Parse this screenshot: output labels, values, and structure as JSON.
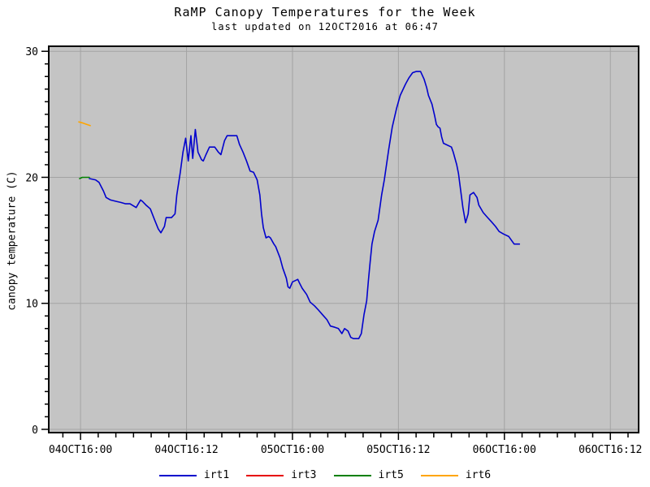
{
  "chart": {
    "title": "RaMP Canopy Temperatures for the Week",
    "subtitle": "last updated on 12OCT2016 at 06:47",
    "ylabel": "canopy temperature (C)"
  },
  "colors": {
    "background": "#ffffff",
    "plot_bg": "#c4c4c4",
    "grid": "#a3a3a3",
    "frame": "#000000",
    "text": "#000000",
    "irt1": "#0202cd",
    "irt3": "#e60000",
    "irt5": "#008000",
    "irt6": "#ffa500"
  },
  "chart_data": {
    "type": "line",
    "title": "RaMP Canopy Temperatures for the Week",
    "subtitle": "last updated on 12OCT2016 at 06:47",
    "xlabel": "",
    "ylabel": "canopy temperature (C)",
    "x_unit": "hours since 04OCT2016 00:00",
    "xlim": [
      -3.6,
      63.2
    ],
    "ylim": [
      -0.26,
      30.4
    ],
    "grid": true,
    "legend_position": "bottom",
    "x_major_ticks": [
      {
        "t": 0,
        "label": "04OCT16:00"
      },
      {
        "t": 12,
        "label": "04OCT16:12"
      },
      {
        "t": 24,
        "label": "05OCT16:00"
      },
      {
        "t": 36,
        "label": "05OCT16:12"
      },
      {
        "t": 48,
        "label": "06OCT16:00"
      },
      {
        "t": 60,
        "label": "06OCT16:12"
      }
    ],
    "x_minor_step": 2,
    "y_major_ticks": [
      {
        "v": 0,
        "label": "0"
      },
      {
        "v": 10,
        "label": "10"
      },
      {
        "v": 20,
        "label": "20"
      },
      {
        "v": 30,
        "label": "30"
      }
    ],
    "y_minor_step": 1,
    "series": [
      {
        "name": "irt1",
        "color": "#0202cd",
        "points": [
          [
            1.0,
            19.9
          ],
          [
            1.7,
            19.8
          ],
          [
            2.1,
            19.6
          ],
          [
            2.6,
            18.9
          ],
          [
            2.9,
            18.4
          ],
          [
            3.4,
            18.2
          ],
          [
            4.0,
            18.1
          ],
          [
            4.6,
            18.0
          ],
          [
            5.1,
            17.9
          ],
          [
            5.6,
            17.9
          ],
          [
            6.3,
            17.6
          ],
          [
            6.8,
            18.2
          ],
          [
            7.0,
            18.1
          ],
          [
            7.4,
            17.8
          ],
          [
            7.9,
            17.5
          ],
          [
            8.4,
            16.6
          ],
          [
            8.8,
            15.9
          ],
          [
            9.1,
            15.6
          ],
          [
            9.5,
            16.1
          ],
          [
            9.7,
            16.8
          ],
          [
            10.3,
            16.8
          ],
          [
            10.7,
            17.1
          ],
          [
            10.9,
            18.6
          ],
          [
            11.3,
            20.4
          ],
          [
            11.6,
            22.0
          ],
          [
            11.9,
            23.1
          ],
          [
            12.2,
            21.3
          ],
          [
            12.5,
            23.3
          ],
          [
            12.7,
            21.5
          ],
          [
            13.0,
            23.8
          ],
          [
            13.3,
            22.0
          ],
          [
            13.7,
            21.4
          ],
          [
            13.9,
            21.3
          ],
          [
            14.2,
            21.8
          ],
          [
            14.6,
            22.4
          ],
          [
            15.2,
            22.4
          ],
          [
            15.6,
            22.0
          ],
          [
            15.9,
            21.8
          ],
          [
            16.3,
            22.9
          ],
          [
            16.6,
            23.3
          ],
          [
            17.7,
            23.3
          ],
          [
            18.0,
            22.6
          ],
          [
            18.4,
            22.0
          ],
          [
            18.8,
            21.3
          ],
          [
            19.2,
            20.5
          ],
          [
            19.6,
            20.4
          ],
          [
            20.0,
            19.8
          ],
          [
            20.3,
            18.6
          ],
          [
            20.5,
            17.1
          ],
          [
            20.7,
            16.0
          ],
          [
            21.0,
            15.2
          ],
          [
            21.3,
            15.3
          ],
          [
            21.5,
            15.2
          ],
          [
            21.9,
            14.7
          ],
          [
            22.1,
            14.5
          ],
          [
            22.6,
            13.6
          ],
          [
            22.9,
            12.8
          ],
          [
            23.3,
            12.0
          ],
          [
            23.5,
            11.3
          ],
          [
            23.7,
            11.2
          ],
          [
            24.0,
            11.7
          ],
          [
            24.3,
            11.8
          ],
          [
            24.6,
            11.9
          ],
          [
            24.8,
            11.6
          ],
          [
            25.1,
            11.2
          ],
          [
            25.6,
            10.7
          ],
          [
            26.0,
            10.1
          ],
          [
            26.5,
            9.8
          ],
          [
            26.9,
            9.5
          ],
          [
            27.4,
            9.1
          ],
          [
            27.9,
            8.7
          ],
          [
            28.3,
            8.2
          ],
          [
            28.8,
            8.1
          ],
          [
            29.2,
            8.0
          ],
          [
            29.6,
            7.6
          ],
          [
            29.9,
            8.0
          ],
          [
            30.3,
            7.8
          ],
          [
            30.6,
            7.3
          ],
          [
            30.9,
            7.2
          ],
          [
            31.5,
            7.2
          ],
          [
            31.8,
            7.6
          ],
          [
            32.1,
            9.1
          ],
          [
            32.4,
            10.2
          ],
          [
            32.6,
            11.8
          ],
          [
            32.8,
            13.3
          ],
          [
            33.0,
            14.7
          ],
          [
            33.3,
            15.7
          ],
          [
            33.7,
            16.6
          ],
          [
            34.1,
            18.6
          ],
          [
            34.4,
            19.8
          ],
          [
            34.9,
            22.2
          ],
          [
            35.3,
            24.0
          ],
          [
            35.8,
            25.5
          ],
          [
            36.2,
            26.5
          ],
          [
            36.8,
            27.4
          ],
          [
            37.2,
            27.9
          ],
          [
            37.6,
            28.3
          ],
          [
            38.0,
            28.4
          ],
          [
            38.5,
            28.4
          ],
          [
            38.9,
            27.8
          ],
          [
            39.2,
            27.1
          ],
          [
            39.4,
            26.5
          ],
          [
            39.8,
            25.8
          ],
          [
            40.1,
            24.9
          ],
          [
            40.3,
            24.2
          ],
          [
            40.5,
            24.0
          ],
          [
            40.7,
            23.9
          ],
          [
            40.9,
            23.2
          ],
          [
            41.1,
            22.7
          ],
          [
            42.0,
            22.4
          ],
          [
            42.2,
            22.0
          ],
          [
            42.6,
            21.0
          ],
          [
            42.8,
            20.3
          ],
          [
            43.0,
            19.2
          ],
          [
            43.3,
            17.6
          ],
          [
            43.6,
            16.4
          ],
          [
            43.9,
            17.1
          ],
          [
            44.1,
            18.6
          ],
          [
            44.5,
            18.8
          ],
          [
            44.9,
            18.4
          ],
          [
            45.1,
            17.8
          ],
          [
            45.6,
            17.2
          ],
          [
            46.1,
            16.8
          ],
          [
            46.5,
            16.5
          ],
          [
            47.0,
            16.1
          ],
          [
            47.4,
            15.7
          ],
          [
            47.9,
            15.5
          ],
          [
            48.5,
            15.3
          ],
          [
            48.8,
            15.0
          ],
          [
            49.1,
            14.7
          ],
          [
            49.7,
            14.7
          ]
        ]
      },
      {
        "name": "irt3",
        "color": "#e60000",
        "points": []
      },
      {
        "name": "irt5",
        "color": "#008000",
        "points": [
          [
            -0.1,
            19.9
          ],
          [
            0.2,
            20.0
          ],
          [
            0.6,
            20.0
          ],
          [
            1.0,
            20.0
          ]
        ]
      },
      {
        "name": "irt6",
        "color": "#ffa500",
        "points": [
          [
            -0.2,
            24.4
          ],
          [
            0.3,
            24.3
          ],
          [
            0.7,
            24.2
          ],
          [
            1.1,
            24.1
          ]
        ]
      }
    ]
  }
}
